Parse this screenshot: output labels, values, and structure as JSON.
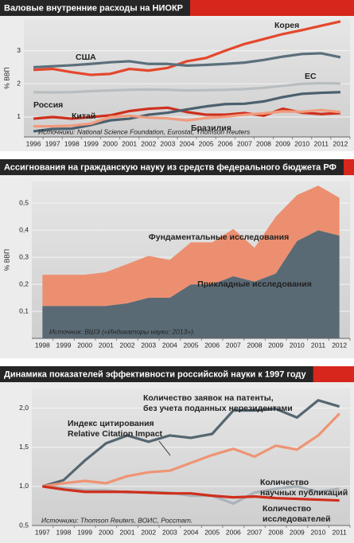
{
  "chart_data": [
    {
      "type": "line",
      "title": "Валовые внутренние расходы на НИОКР",
      "y_label": "% ВВП",
      "source": "Источники: National Science Foundation, Eurostat, Thomson Reuters",
      "categories": [
        "1996",
        "1997",
        "1998",
        "1999",
        "2000",
        "2001",
        "2002",
        "2003",
        "2004",
        "2005",
        "2006",
        "2007",
        "2008",
        "2009",
        "2010",
        "2011",
        "2012"
      ],
      "ylim": [
        0.4,
        3.95
      ],
      "yticks": [
        1,
        2,
        3
      ],
      "grid": true,
      "series": [
        {
          "name": "Корея",
          "color": "#e4472c",
          "values": [
            2.42,
            2.45,
            2.35,
            2.27,
            2.3,
            2.45,
            2.4,
            2.48,
            2.68,
            2.78,
            3.0,
            3.2,
            3.35,
            3.5,
            3.62,
            3.75,
            3.88
          ]
        },
        {
          "name": "США",
          "color": "#5b6f7c",
          "values": [
            2.5,
            2.53,
            2.56,
            2.6,
            2.65,
            2.68,
            2.6,
            2.6,
            2.55,
            2.57,
            2.6,
            2.64,
            2.72,
            2.82,
            2.9,
            2.92,
            2.8
          ]
        },
        {
          "name": "ЕС",
          "color": "#b9bdc0",
          "values": [
            1.75,
            1.74,
            1.75,
            1.78,
            1.8,
            1.82,
            1.83,
            1.82,
            1.8,
            1.81,
            1.82,
            1.84,
            1.88,
            1.94,
            2.0,
            2.02,
            2.01
          ]
        },
        {
          "name": "Россия",
          "color": "#cf2f1c",
          "values": [
            0.95,
            1.0,
            0.95,
            1.0,
            1.05,
            1.18,
            1.25,
            1.28,
            1.15,
            1.07,
            1.07,
            1.12,
            1.04,
            1.25,
            1.13,
            1.09,
            1.12
          ]
        },
        {
          "name": "Китай",
          "color": "#4b606e",
          "values": [
            0.57,
            0.64,
            0.65,
            0.76,
            0.9,
            0.95,
            1.07,
            1.13,
            1.23,
            1.32,
            1.39,
            1.4,
            1.47,
            1.6,
            1.7,
            1.73,
            1.75
          ]
        },
        {
          "name": "Бразилия",
          "color": "#f09a7c",
          "values": [
            0.72,
            0.72,
            0.74,
            0.8,
            1.0,
            1.04,
            0.98,
            0.96,
            0.9,
            0.97,
            1.01,
            1.07,
            1.11,
            1.17,
            1.16,
            1.21,
            1.15
          ]
        }
      ]
    },
    {
      "type": "area",
      "title": "Ассигнования на гражданскую науку из средств федерального бюджета РФ",
      "y_label": "% ВВП",
      "source": "Источник: ВШЭ («Индикаторы науки: 2013»).",
      "categories": [
        "1998",
        "1999",
        "2000",
        "2001",
        "2002",
        "2003",
        "2004",
        "2005",
        "2006",
        "2007",
        "2008",
        "2009",
        "2010",
        "2011",
        "2012"
      ],
      "ylim": [
        0,
        0.58
      ],
      "yticks": [
        {
          "value": 0.1,
          "label": "0,1"
        },
        {
          "value": 0.2,
          "label": "0,2"
        },
        {
          "value": 0.3,
          "label": "0,3"
        },
        {
          "value": 0.4,
          "label": "0,4"
        },
        {
          "value": 0.5,
          "label": "0,5"
        }
      ],
      "grid": true,
      "stacked": true,
      "series": [
        {
          "name": "Прикладные исследования",
          "color": "#5a6a75",
          "values": [
            0.12,
            0.12,
            0.12,
            0.12,
            0.13,
            0.15,
            0.15,
            0.2,
            0.2,
            0.23,
            0.21,
            0.24,
            0.36,
            0.4,
            0.38
          ]
        },
        {
          "name": "Фундаментальные исследования",
          "color": "#ec8f70",
          "values": [
            0.115,
            0.115,
            0.115,
            0.125,
            0.145,
            0.155,
            0.14,
            0.155,
            0.155,
            0.175,
            0.125,
            0.21,
            0.17,
            0.165,
            0.14
          ]
        }
      ]
    },
    {
      "type": "line",
      "title": "Динамика показателей эффективности российской науки к 1997 году",
      "source": "Источники: Thomson Reuters, ВОИС, Росстат.",
      "categories": [
        "1997",
        "1998",
        "1999",
        "2000",
        "2001",
        "2002",
        "2003",
        "2004",
        "2005",
        "2006",
        "2007",
        "2008",
        "2009",
        "2010",
        "2011"
      ],
      "ylim": [
        0.5,
        2.25
      ],
      "yticks": [
        {
          "value": 0.5,
          "label": "0,5"
        },
        {
          "value": 1.0,
          "label": "1,0"
        },
        {
          "value": 1.5,
          "label": "1,5"
        },
        {
          "value": 2.0,
          "label": "2,0"
        }
      ],
      "grid": true,
      "series": [
        {
          "name": [
            "Количество заявок на патенты,",
            "без учета  поданных нерезидентами"
          ],
          "color": "#55666f",
          "values": [
            1.0,
            1.08,
            1.33,
            1.55,
            1.65,
            1.57,
            1.65,
            1.62,
            1.67,
            1.97,
            1.97,
            1.99,
            1.88,
            2.1,
            2.02
          ]
        },
        {
          "name": [
            "Индекс цитирования",
            "Relative Citation Impact"
          ],
          "color": "#a9b3b9",
          "values": [
            1.0,
            0.98,
            0.95,
            0.95,
            0.92,
            0.93,
            0.92,
            0.88,
            0.88,
            0.78,
            0.92,
            0.97,
            1.0,
            0.93,
            0.97
          ]
        },
        {
          "name": [
            "Количество",
            "научных публикаций"
          ],
          "color": "#ee9474",
          "values": [
            1.0,
            1.04,
            1.07,
            1.04,
            1.13,
            1.18,
            1.2,
            1.3,
            1.4,
            1.48,
            1.38,
            1.52,
            1.47,
            1.65,
            1.93
          ]
        },
        {
          "name": [
            "Количество",
            "исследователей"
          ],
          "color": "#cf2f1c",
          "values": [
            1.0,
            0.96,
            0.93,
            0.93,
            0.93,
            0.92,
            0.91,
            0.91,
            0.88,
            0.86,
            0.87,
            0.85,
            0.84,
            0.83,
            0.82
          ]
        }
      ]
    }
  ]
}
